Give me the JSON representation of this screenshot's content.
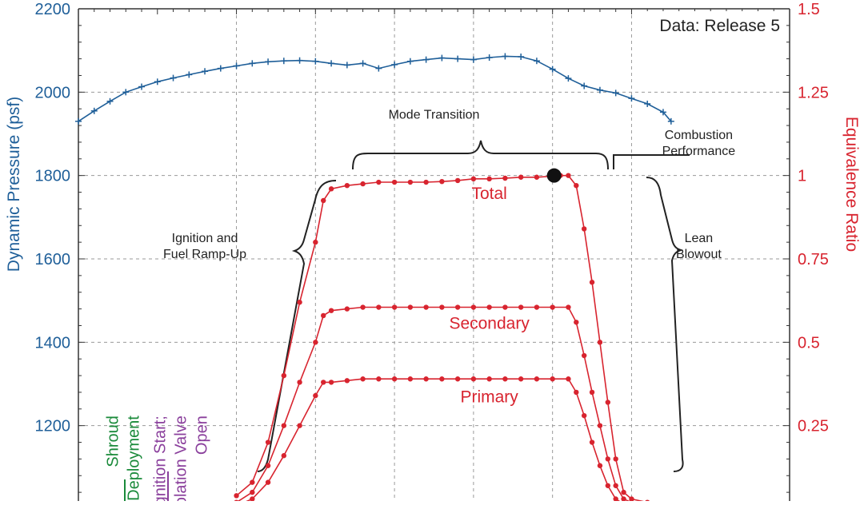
{
  "chart_data": {
    "type": "line",
    "title": "",
    "note": "Data: Release 5",
    "y_left": {
      "label": "Dynamic Pressure (psf)",
      "ylim": [
        1000,
        2200
      ],
      "ticks": [
        1200,
        1400,
        1600,
        1800,
        2000,
        2200
      ],
      "tick_labels": [
        "1200",
        "1400",
        "1600",
        "1800",
        "2000",
        "2200"
      ],
      "color": "#1f5f99"
    },
    "y_right": {
      "label": "Equivalence Ratio",
      "ylim": [
        0,
        1.5
      ],
      "ticks": [
        0,
        0.25,
        0.5,
        0.75,
        1,
        1.25,
        1.5
      ],
      "tick_labels": [
        "0",
        "0.25",
        "0.5",
        "0.75",
        "1",
        "1.25",
        "1.5"
      ],
      "color": "#d8242f"
    },
    "x": {
      "label": "",
      "xlim": [
        0,
        9
      ],
      "gridlines": [
        2,
        3,
        4,
        5,
        6,
        7
      ],
      "tick_labels": []
    },
    "grid": true,
    "series": [
      {
        "key": "pressure",
        "axis": "left",
        "color": "#1f5f99",
        "marker": "plus",
        "points": [
          [
            0,
            1930
          ],
          [
            0.2,
            1955
          ],
          [
            0.4,
            1978
          ],
          [
            0.6,
            2000
          ],
          [
            0.8,
            2013
          ],
          [
            1.0,
            2025
          ],
          [
            1.2,
            2034
          ],
          [
            1.4,
            2042
          ],
          [
            1.6,
            2050
          ],
          [
            1.8,
            2057
          ],
          [
            2.0,
            2063
          ],
          [
            2.2,
            2069
          ],
          [
            2.4,
            2073
          ],
          [
            2.6,
            2075
          ],
          [
            2.8,
            2076
          ],
          [
            3.0,
            2074
          ],
          [
            3.2,
            2069
          ],
          [
            3.4,
            2065
          ],
          [
            3.6,
            2069
          ],
          [
            3.8,
            2057
          ],
          [
            4.0,
            2066
          ],
          [
            4.2,
            2074
          ],
          [
            4.4,
            2078
          ],
          [
            4.6,
            2082
          ],
          [
            4.8,
            2080
          ],
          [
            5.0,
            2078
          ],
          [
            5.2,
            2083
          ],
          [
            5.4,
            2086
          ],
          [
            5.6,
            2085
          ],
          [
            5.8,
            2075
          ],
          [
            6.0,
            2055
          ],
          [
            6.2,
            2033
          ],
          [
            6.4,
            2015
          ],
          [
            6.6,
            2005
          ],
          [
            6.8,
            1998
          ],
          [
            7.0,
            1985
          ],
          [
            7.2,
            1972
          ],
          [
            7.4,
            1952
          ],
          [
            7.5,
            1930
          ]
        ]
      },
      {
        "name": "Total",
        "key": "total",
        "axis": "right",
        "color": "#d8242f",
        "points": [
          [
            2.0,
            0.04
          ],
          [
            2.2,
            0.08
          ],
          [
            2.4,
            0.2
          ],
          [
            2.6,
            0.4
          ],
          [
            2.8,
            0.62
          ],
          [
            3.0,
            0.8
          ],
          [
            3.1,
            0.925
          ],
          [
            3.2,
            0.96
          ],
          [
            3.4,
            0.97
          ],
          [
            3.6,
            0.975
          ],
          [
            3.8,
            0.98
          ],
          [
            4.0,
            0.98
          ],
          [
            4.2,
            0.98
          ],
          [
            4.4,
            0.98
          ],
          [
            4.6,
            0.982
          ],
          [
            4.8,
            0.985
          ],
          [
            5.0,
            0.99
          ],
          [
            5.2,
            0.99
          ],
          [
            5.4,
            0.992
          ],
          [
            5.6,
            0.995
          ],
          [
            5.8,
            0.995
          ],
          [
            6.0,
            0.998
          ],
          [
            6.1,
            1.0
          ],
          [
            6.2,
            1.0
          ],
          [
            6.3,
            0.97
          ],
          [
            6.4,
            0.84
          ],
          [
            6.5,
            0.68
          ],
          [
            6.6,
            0.5
          ],
          [
            6.7,
            0.32
          ],
          [
            6.8,
            0.15
          ],
          [
            6.9,
            0.05
          ],
          [
            7.0,
            0.03
          ],
          [
            7.2,
            0.02
          ]
        ]
      },
      {
        "name": "Secondary",
        "key": "secondary",
        "axis": "right",
        "color": "#d8242f",
        "points": [
          [
            2.0,
            0.02
          ],
          [
            2.2,
            0.05
          ],
          [
            2.4,
            0.13
          ],
          [
            2.6,
            0.25
          ],
          [
            2.8,
            0.38
          ],
          [
            3.0,
            0.5
          ],
          [
            3.1,
            0.58
          ],
          [
            3.2,
            0.595
          ],
          [
            3.4,
            0.6
          ],
          [
            3.6,
            0.605
          ],
          [
            3.8,
            0.605
          ],
          [
            4.0,
            0.605
          ],
          [
            4.2,
            0.605
          ],
          [
            4.4,
            0.605
          ],
          [
            4.6,
            0.605
          ],
          [
            4.8,
            0.605
          ],
          [
            5.0,
            0.605
          ],
          [
            5.2,
            0.605
          ],
          [
            5.4,
            0.605
          ],
          [
            5.6,
            0.605
          ],
          [
            5.8,
            0.605
          ],
          [
            6.0,
            0.605
          ],
          [
            6.2,
            0.605
          ],
          [
            6.3,
            0.56
          ],
          [
            6.4,
            0.46
          ],
          [
            6.5,
            0.35
          ],
          [
            6.6,
            0.25
          ],
          [
            6.7,
            0.15
          ],
          [
            6.8,
            0.07
          ],
          [
            6.9,
            0.03
          ],
          [
            7.0,
            0.02
          ],
          [
            7.2,
            0.01
          ]
        ]
      },
      {
        "name": "Primary",
        "key": "primary",
        "axis": "right",
        "color": "#d8242f",
        "points": [
          [
            2.0,
            0.01
          ],
          [
            2.2,
            0.03
          ],
          [
            2.4,
            0.08
          ],
          [
            2.6,
            0.16
          ],
          [
            2.8,
            0.25
          ],
          [
            3.0,
            0.34
          ],
          [
            3.1,
            0.38
          ],
          [
            3.2,
            0.38
          ],
          [
            3.4,
            0.385
          ],
          [
            3.6,
            0.39
          ],
          [
            3.8,
            0.39
          ],
          [
            4.0,
            0.39
          ],
          [
            4.2,
            0.39
          ],
          [
            4.4,
            0.39
          ],
          [
            4.6,
            0.39
          ],
          [
            4.8,
            0.39
          ],
          [
            5.0,
            0.39
          ],
          [
            5.2,
            0.39
          ],
          [
            5.4,
            0.39
          ],
          [
            5.6,
            0.39
          ],
          [
            5.8,
            0.39
          ],
          [
            6.0,
            0.39
          ],
          [
            6.2,
            0.39
          ],
          [
            6.3,
            0.35
          ],
          [
            6.4,
            0.28
          ],
          [
            6.5,
            0.2
          ],
          [
            6.6,
            0.13
          ],
          [
            6.7,
            0.07
          ],
          [
            6.8,
            0.03
          ],
          [
            6.9,
            0.015
          ],
          [
            7.0,
            0.01
          ],
          [
            7.2,
            0.005
          ]
        ]
      }
    ],
    "curve_labels": [
      {
        "text": "Total",
        "x": 5.2,
        "y": 0.93
      },
      {
        "text": "Secondary",
        "x": 5.2,
        "y": 0.54
      },
      {
        "text": "Primary",
        "x": 5.2,
        "y": 0.32
      }
    ],
    "annotations": [
      {
        "key": "mode",
        "lines": [
          "Mode Transition"
        ],
        "x": 4.5,
        "y": 1.17,
        "color": "#222222"
      },
      {
        "key": "combustion",
        "lines": [
          "Combustion",
          "Performance"
        ],
        "x": 7.85,
        "y": 1.11,
        "color": "#222222"
      },
      {
        "key": "ignition",
        "lines": [
          "Ignition and",
          "Fuel Ramp-Up"
        ],
        "x": 1.6,
        "y": 0.8,
        "color": "#222222"
      },
      {
        "key": "lean",
        "lines": [
          "Lean",
          "Blowout"
        ],
        "x": 7.85,
        "y": 0.8,
        "color": "#222222"
      },
      {
        "key": "shroud",
        "lines": [
          "Shroud",
          "Deployment"
        ],
        "x": 0.5,
        "y": 0.28,
        "color": "#1a8a3a",
        "rotated": true
      },
      {
        "key": "valve",
        "lines": [
          "Ignition Start;",
          "Isolation Valve",
          "Open"
        ],
        "x": 1.1,
        "y": 0.28,
        "color": "#8a3f9c",
        "rotated": true
      }
    ],
    "marker_point": {
      "x": 6.02,
      "y": 1.0
    }
  }
}
